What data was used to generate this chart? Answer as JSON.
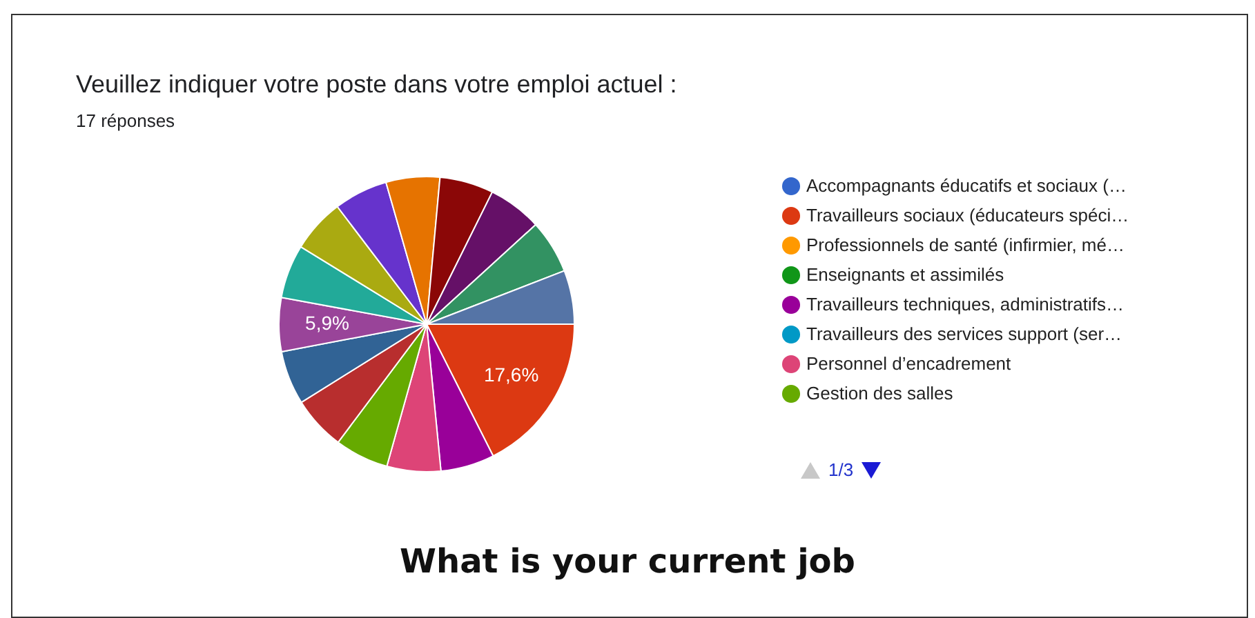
{
  "chart_data": {
    "type": "pie",
    "title": "Veuillez indiquer votre poste dans votre emploi actuel :",
    "subtitle": "17 réponses",
    "categories": [
      "Accompagnants éducatifs et sociaux (…",
      "Travailleurs sociaux (éducateurs spéci…",
      "Professionnels de santé (infirmier, mé…",
      "Enseignants et assimilés",
      "Travailleurs techniques, administratifs…",
      "Travailleurs des services support (ser…",
      "Personnel d’encadrement",
      "Gestion des salles",
      null,
      null,
      null,
      null,
      null,
      null,
      null,
      null,
      null,
      null,
      null
    ],
    "values": [
      0,
      17.6,
      0,
      0,
      5.9,
      0,
      5.9,
      5.9,
      5.9,
      5.9,
      5.9,
      5.9,
      5.9,
      5.9,
      5.9,
      5.9,
      5.9,
      5.9,
      5.9
    ],
    "value_labels": [
      null,
      "17,6%",
      null,
      null,
      null,
      null,
      null,
      null,
      null,
      null,
      "5,9%",
      null,
      null,
      null,
      null,
      null,
      null,
      null,
      null
    ],
    "colors": [
      "#3366cc",
      "#dc3912",
      "#ff9900",
      "#109618",
      "#990099",
      "#0099c6",
      "#dd4477",
      "#66aa00",
      "#b82e2e",
      "#316395",
      "#994499",
      "#22aa99",
      "#aaaa11",
      "#6633cc",
      "#e67300",
      "#8b0707",
      "#651067",
      "#329262",
      "#5574a6"
    ],
    "legend": "right",
    "annotations": [
      "1/3",
      "What is your current job"
    ]
  }
}
